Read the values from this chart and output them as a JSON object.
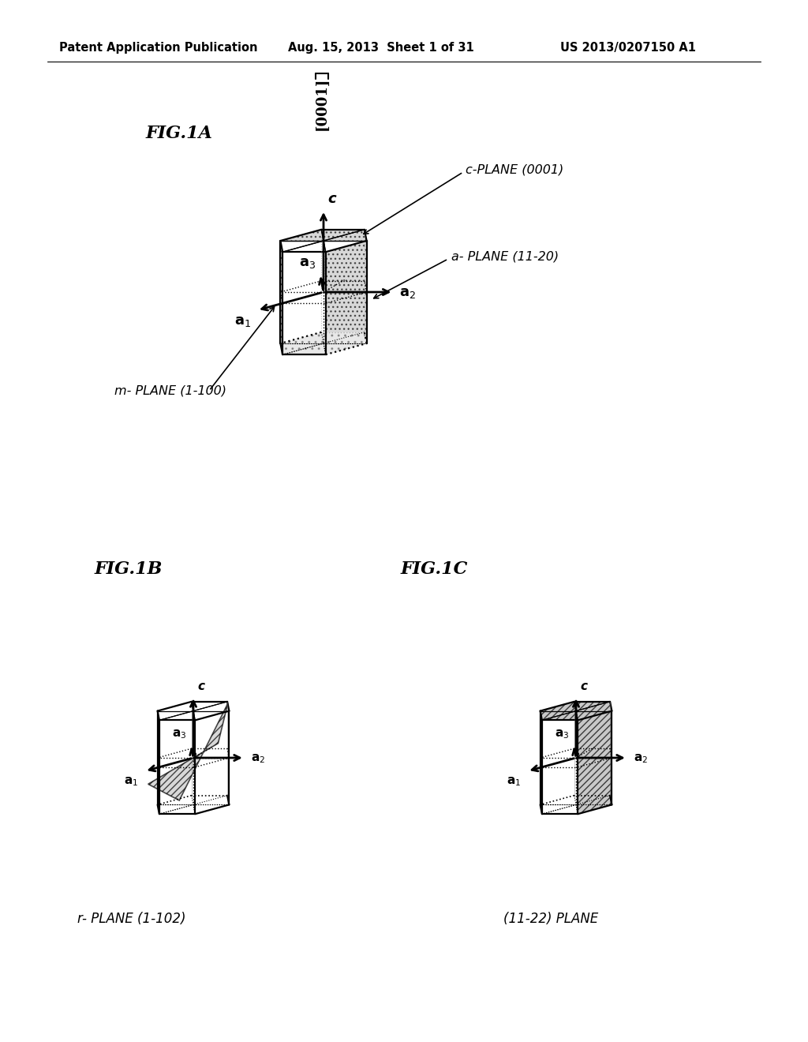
{
  "header_left": "Patent Application Publication",
  "header_date": "Aug. 15, 2013  Sheet 1 of 31",
  "header_right": "US 2013/0207150 A1",
  "direction_label": "[0001]",
  "fig1a_label": "FIG.1A",
  "fig1b_label": "FIG.1B",
  "fig1c_label": "FIG.1C",
  "c_plane_label": "c-PLANE (0001)",
  "a_plane_label": "a- PLANE (11-20)",
  "m_plane_label": "m- PLANE (1-100)",
  "r_plane_label": "r- PLANE (1-102)",
  "s_plane_label": "(11-22) PLANE",
  "bg_color": "#ffffff",
  "lc": "#000000"
}
